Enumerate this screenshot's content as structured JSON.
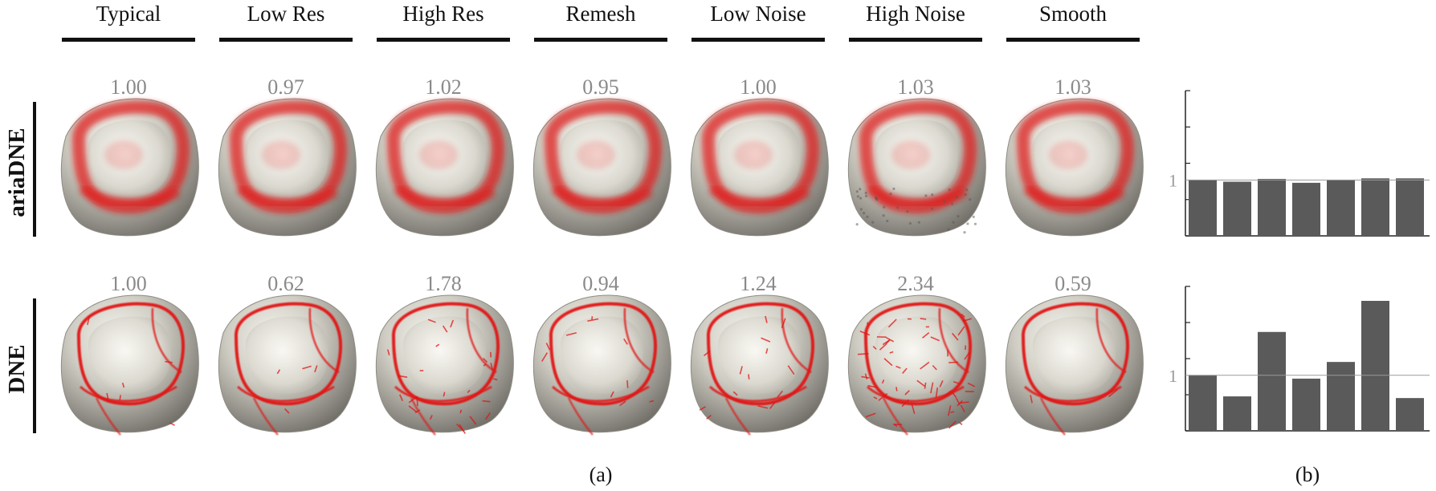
{
  "figure": {
    "columns": [
      "Typical",
      "Low Res",
      "High Res",
      "Remesh",
      "Low Noise",
      "High Noise",
      "Smooth"
    ],
    "rows": [
      {
        "label": "ariaDNE",
        "values": [
          "1.00",
          "0.97",
          "1.02",
          "0.95",
          "1.00",
          "1.03",
          "1.03"
        ],
        "style": "soft"
      },
      {
        "label": "DNE",
        "values": [
          "1.00",
          "0.62",
          "1.78",
          "0.94",
          "1.24",
          "2.34",
          "0.59"
        ],
        "style": "ridges"
      }
    ],
    "panel_labels": {
      "a": "(a)",
      "b": "(b)"
    },
    "colors": {
      "mesh": "#c5c3b9",
      "curvature": "#e11414",
      "bar": "#5a5a5a",
      "value_text": "#8a8a8a"
    }
  },
  "chart_data": [
    {
      "type": "bar",
      "categories": [
        "Typical",
        "Low Res",
        "High Res",
        "Remesh",
        "Low Noise",
        "High Noise",
        "Smooth"
      ],
      "values": [
        1.0,
        0.97,
        1.02,
        0.95,
        1.0,
        1.03,
        1.03
      ],
      "ylim": [
        0,
        2.6
      ],
      "reference_line": 1,
      "reference_label": "1",
      "title": "",
      "xlabel": "",
      "ylabel": ""
    },
    {
      "type": "bar",
      "categories": [
        "Typical",
        "Low Res",
        "High Res",
        "Remesh",
        "Low Noise",
        "High Noise",
        "Smooth"
      ],
      "values": [
        1.0,
        0.62,
        1.78,
        0.94,
        1.24,
        2.34,
        0.59
      ],
      "ylim": [
        0,
        2.6
      ],
      "reference_line": 1,
      "reference_label": "1",
      "title": "",
      "xlabel": "",
      "ylabel": ""
    }
  ]
}
